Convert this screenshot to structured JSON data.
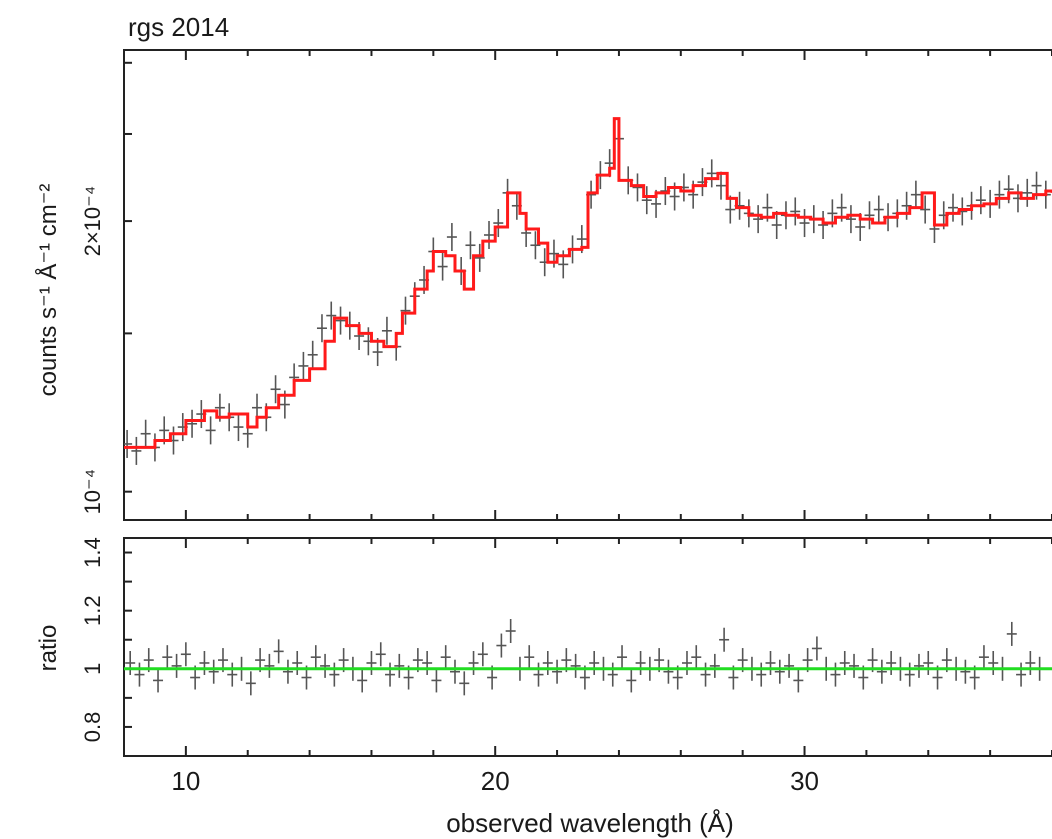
{
  "chart_data": [
    {
      "type": "line",
      "panel": "spectrum",
      "title": "rgs 2014",
      "ylabel": "counts s⁻¹ Å⁻¹ cm⁻²",
      "yscale": "log",
      "ylim": [
        9.3e-05,
        0.00031
      ],
      "xlim": [
        8,
        38
      ],
      "y_ticks": [
        {
          "value": 0.0001,
          "label": "10⁻⁴"
        },
        {
          "value": 0.0002,
          "label": "2×10⁻⁴"
        }
      ],
      "series": [
        {
          "role": "data",
          "color": "#555555",
          "x": [
            8.1,
            8.4,
            8.7,
            9.0,
            9.3,
            9.6,
            9.9,
            10.2,
            10.5,
            10.8,
            11.1,
            11.4,
            11.7,
            12.0,
            12.3,
            12.6,
            12.9,
            13.2,
            13.5,
            13.8,
            14.1,
            14.4,
            14.7,
            15.0,
            15.3,
            15.6,
            15.9,
            16.2,
            16.5,
            16.8,
            17.1,
            17.4,
            17.7,
            18.0,
            18.3,
            18.6,
            18.9,
            19.2,
            19.5,
            19.8,
            20.1,
            20.4,
            20.7,
            21.0,
            21.3,
            21.6,
            21.9,
            22.2,
            22.5,
            22.8,
            23.1,
            23.4,
            23.7,
            24.0,
            24.3,
            24.6,
            24.9,
            25.2,
            25.5,
            25.8,
            26.1,
            26.4,
            26.7,
            27.0,
            27.3,
            27.6,
            27.9,
            28.2,
            28.5,
            28.8,
            29.1,
            29.4,
            29.7,
            30.0,
            30.3,
            30.6,
            30.9,
            31.2,
            31.5,
            31.8,
            32.1,
            32.4,
            32.7,
            33.0,
            33.3,
            33.6,
            33.9,
            34.2,
            34.5,
            34.8,
            35.1,
            35.4,
            35.7,
            36.0,
            36.3,
            36.6,
            36.9,
            37.2,
            37.5,
            37.8
          ],
          "y": [
            0.000113,
            0.000111,
            0.000116,
            0.000112,
            0.000117,
            0.000114,
            0.000118,
            0.000119,
            0.000122,
            0.000117,
            0.000124,
            0.000121,
            0.000118,
            0.000116,
            0.000124,
            0.000121,
            0.00013,
            0.000125,
            0.000134,
            0.000138,
            0.000142,
            0.000152,
            0.000157,
            0.000155,
            0.000153,
            0.000149,
            0.000147,
            0.000143,
            0.000151,
            0.000145,
            0.000159,
            0.000165,
            0.000172,
            0.000185,
            0.000178,
            0.000192,
            0.000176,
            0.000188,
            0.000182,
            0.000193,
            0.000199,
            0.000215,
            0.000208,
            0.000194,
            0.000188,
            0.00018,
            0.000184,
            0.000179,
            0.000186,
            0.000191,
            0.000214,
            0.000225,
            0.000232,
            0.000247,
            0.000222,
            0.000218,
            0.000211,
            0.000209,
            0.000216,
            0.000213,
            0.000218,
            0.000214,
            0.000221,
            0.000226,
            0.000219,
            0.000206,
            0.000208,
            0.000204,
            0.000201,
            0.000207,
            0.000198,
            0.000203,
            0.000205,
            0.000199,
            0.000201,
            0.000198,
            0.000204,
            0.000207,
            0.000201,
            0.000197,
            0.000203,
            0.000206,
            0.000202,
            0.000204,
            0.000208,
            0.000214,
            0.000206,
            0.000196,
            0.000203,
            0.000207,
            0.000205,
            0.000208,
            0.000211,
            0.000209,
            0.000214,
            0.000217,
            0.000212,
            0.000215,
            0.000219,
            0.000214
          ]
        },
        {
          "role": "model",
          "color": "#ff1a1a",
          "x": [
            8,
            9,
            9.5,
            10,
            10.6,
            11,
            11.4,
            12,
            12.3,
            12.6,
            13,
            13.5,
            14,
            14.5,
            14.8,
            15.2,
            15.6,
            16.0,
            16.4,
            16.8,
            17.0,
            17.4,
            17.8,
            18.0,
            18.4,
            18.7,
            19.0,
            19.3,
            19.6,
            20.0,
            20.4,
            20.8,
            21.0,
            21.4,
            21.7,
            22.0,
            22.4,
            22.8,
            23.0,
            23.3,
            23.7,
            23.85,
            24.0,
            24.4,
            24.8,
            25.2,
            25.6,
            26.0,
            26.4,
            26.8,
            27.2,
            27.5,
            27.8,
            28.2,
            28.6,
            29.0,
            29.4,
            29.8,
            30.2,
            30.6,
            31.0,
            31.4,
            31.8,
            32.2,
            32.6,
            33.0,
            33.4,
            33.8,
            34.2,
            34.6,
            35.0,
            35.4,
            35.8,
            36.2,
            36.6,
            37.0,
            37.4,
            37.8,
            38.0
          ],
          "y": [
            0.000112,
            0.000114,
            0.000116,
            0.00012,
            0.000123,
            0.000121,
            0.000122,
            0.000118,
            0.000121,
            0.000124,
            0.000128,
            0.000133,
            0.000137,
            0.000147,
            0.000156,
            0.000153,
            0.00015,
            0.000147,
            0.000145,
            0.00015,
            0.000158,
            0.000168,
            0.000176,
            0.000185,
            0.000183,
            0.000176,
            0.000168,
            0.000183,
            0.00019,
            0.000197,
            0.000215,
            0.000204,
            0.000196,
            0.000189,
            0.00018,
            0.000183,
            0.000186,
            0.000187,
            0.000215,
            0.000225,
            0.000229,
            0.00026,
            0.000222,
            0.000219,
            0.000213,
            0.000215,
            0.000218,
            0.000216,
            0.000219,
            0.000223,
            0.000226,
            0.000212,
            0.000207,
            0.000203,
            0.000202,
            0.000204,
            0.000203,
            0.000202,
            0.000201,
            0.000199,
            0.000202,
            0.000203,
            0.000201,
            0.000199,
            0.000202,
            0.000204,
            0.000207,
            0.000215,
            0.000198,
            0.000204,
            0.000206,
            0.000208,
            0.000209,
            0.000212,
            0.000215,
            0.000212,
            0.000214,
            0.000216,
            0.000215
          ]
        }
      ]
    },
    {
      "type": "line",
      "panel": "residuals",
      "xlabel": "observed wavelength (Å)",
      "ylabel": "ratio",
      "ylim": [
        0.7,
        1.45
      ],
      "xlim": [
        8,
        38
      ],
      "x_ticks": [
        10,
        20,
        30
      ],
      "y_ticks": [
        {
          "value": 0.8,
          "label": "0.8"
        },
        {
          "value": 1.0,
          "label": "1"
        },
        {
          "value": 1.2,
          "label": "1.2"
        },
        {
          "value": 1.4,
          "label": "1.4"
        }
      ],
      "series": [
        {
          "role": "data",
          "color": "#555555",
          "x": [
            8.2,
            8.5,
            8.8,
            9.1,
            9.4,
            9.7,
            10.0,
            10.3,
            10.6,
            10.9,
            11.2,
            11.5,
            11.8,
            12.1,
            12.4,
            12.7,
            13.0,
            13.3,
            13.6,
            13.9,
            14.2,
            14.5,
            14.8,
            15.1,
            15.4,
            15.7,
            16.0,
            16.3,
            16.6,
            16.9,
            17.2,
            17.5,
            17.8,
            18.1,
            18.4,
            18.7,
            19.0,
            19.3,
            19.6,
            19.9,
            20.2,
            20.5,
            20.8,
            21.1,
            21.4,
            21.7,
            22.0,
            22.3,
            22.6,
            22.9,
            23.2,
            23.5,
            23.8,
            24.1,
            24.4,
            24.7,
            25.0,
            25.3,
            25.6,
            25.9,
            26.2,
            26.5,
            26.8,
            27.1,
            27.4,
            27.7,
            28.0,
            28.3,
            28.6,
            28.9,
            29.2,
            29.5,
            29.8,
            30.1,
            30.4,
            30.7,
            31.0,
            31.3,
            31.6,
            31.9,
            32.2,
            32.5,
            32.8,
            33.1,
            33.4,
            33.7,
            34.0,
            34.3,
            34.6,
            34.9,
            35.2,
            35.5,
            35.8,
            36.1,
            36.4,
            36.7,
            37.0,
            37.3,
            37.6
          ],
          "y": [
            1.02,
            0.98,
            1.03,
            0.96,
            1.04,
            1.01,
            1.05,
            0.97,
            1.02,
            0.99,
            1.03,
            0.98,
            1.0,
            0.95,
            1.03,
            1.01,
            1.06,
            0.99,
            1.02,
            0.97,
            1.04,
            1.01,
            0.98,
            1.03,
            1.0,
            0.96,
            1.02,
            1.05,
            0.98,
            1.01,
            0.97,
            1.03,
            1.02,
            0.96,
            1.04,
            0.99,
            0.95,
            1.02,
            1.05,
            0.97,
            1.08,
            1.13,
            1.0,
            1.04,
            0.98,
            1.02,
            0.99,
            1.03,
            1.01,
            0.97,
            1.02,
            1.0,
            0.98,
            1.04,
            0.96,
            1.02,
            1.0,
            1.03,
            0.99,
            0.97,
            1.02,
            1.04,
            0.98,
            1.01,
            1.1,
            0.97,
            1.03,
            1.0,
            0.98,
            1.02,
            0.99,
            1.01,
            0.96,
            1.03,
            1.07,
            1.0,
            0.98,
            1.02,
            1.01,
            0.97,
            1.03,
            0.99,
            1.02,
            1.0,
            0.98,
            1.01,
            1.02,
            0.97,
            1.03,
            1.0,
            0.99,
            0.97,
            1.04,
            1.02,
            1.0,
            1.12,
            0.98,
            1.02,
            1.0
          ]
        },
        {
          "role": "reference",
          "color": "#22dd22",
          "x": [
            8,
            38
          ],
          "y": [
            1.0,
            1.0
          ]
        }
      ]
    }
  ]
}
